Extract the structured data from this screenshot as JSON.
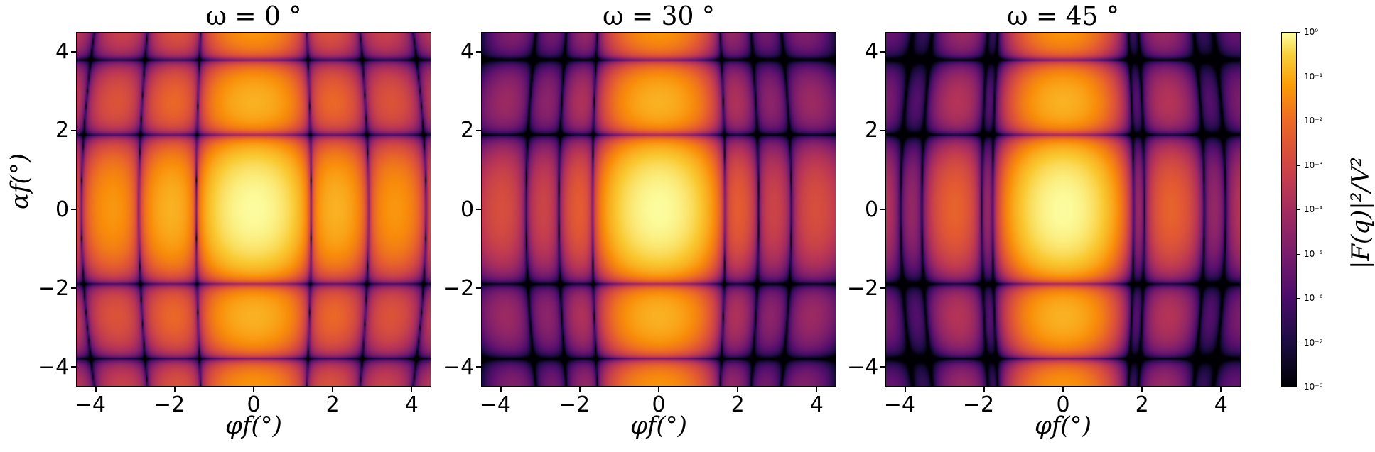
{
  "chart_data": [
    {
      "type": "heatmap",
      "title": "ω = 0 °",
      "xlabel": "φf(°)",
      "ylabel": "αf(°)",
      "xlim": [
        -4.5,
        4.5
      ],
      "ylim": [
        -4.5,
        4.5
      ],
      "xticks": [
        "−4",
        "−2",
        "0",
        "2",
        "4"
      ],
      "yticks": [
        "4",
        "2",
        "0",
        "−2",
        "−4"
      ],
      "omega_deg": 0
    },
    {
      "type": "heatmap",
      "title": "ω = 30 °",
      "xlabel": "φf(°)",
      "xlim": [
        -4.5,
        4.5
      ],
      "ylim": [
        -4.5,
        4.5
      ],
      "xticks": [
        "−4",
        "−2",
        "0",
        "2",
        "4"
      ],
      "yticks": [
        "4",
        "2",
        "0",
        "−2",
        "−4"
      ],
      "omega_deg": 30
    },
    {
      "type": "heatmap",
      "title": "ω = 45 °",
      "xlabel": "φf(°)",
      "xlim": [
        -4.5,
        4.5
      ],
      "ylim": [
        -4.5,
        4.5
      ],
      "xticks": [
        "−4",
        "−2",
        "0",
        "2",
        "4"
      ],
      "yticks": [
        "4",
        "2",
        "0",
        "−2",
        "−4"
      ],
      "omega_deg": 45
    }
  ],
  "colorbar": {
    "label": "|F(q)|²/V²",
    "scale": "log",
    "range": [
      1e-08,
      1
    ],
    "colormap": "inferno",
    "ticks": [
      "10⁰",
      "10⁻¹",
      "10⁻²",
      "10⁻³",
      "10⁻⁴",
      "10⁻⁵",
      "10⁻⁶",
      "10⁻⁷",
      "10⁻⁸"
    ]
  }
}
